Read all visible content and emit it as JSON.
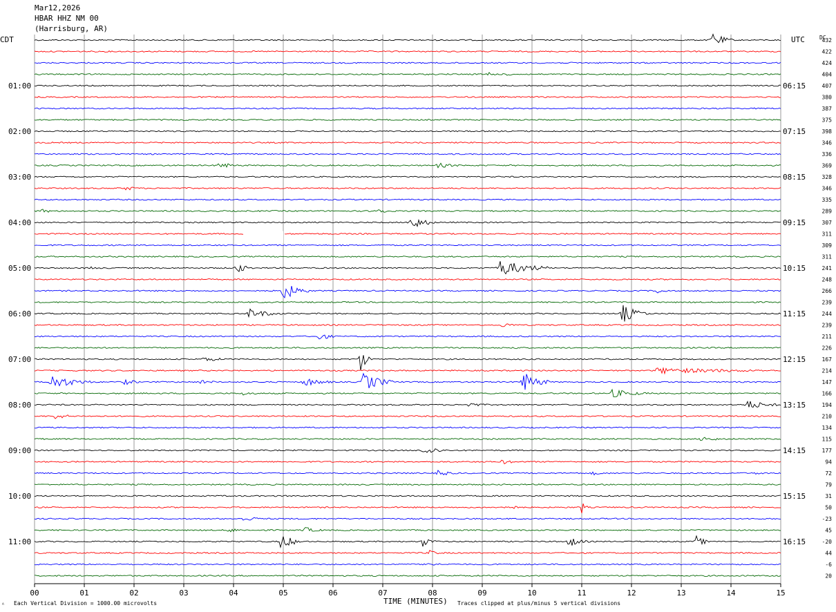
{
  "header": {
    "date": "Mar12,2026",
    "station": "HBAR HHZ NM 00",
    "location": "(Harrisburg, AR)"
  },
  "left_axis_label": "CDT",
  "right_axis_label": "UTC",
  "dc_label": "DC",
  "footer": {
    "scale_note": "Each Vertical Division = 1000.00 microvolts",
    "x_axis_title": "TIME (MINUTES)",
    "clip_note": "Traces clipped at plus/minus 5 vertical divisions",
    "corner_mark": "ᴬ"
  },
  "colors": {
    "black": "#000000",
    "red": "#ff0000",
    "blue": "#0000ff",
    "green": "#006600",
    "grid": "#808080"
  },
  "chart_data": {
    "type": "line",
    "title": "HBAR HHZ NM 00",
    "xlabel": "TIME (MINUTES)",
    "xlim": [
      0,
      15
    ],
    "x_ticks": [
      "00",
      "01",
      "02",
      "03",
      "04",
      "05",
      "06",
      "07",
      "08",
      "09",
      "10",
      "11",
      "12",
      "13",
      "14",
      "15"
    ],
    "row_minutes": 15,
    "color_cycle": [
      "black",
      "red",
      "blue",
      "green"
    ],
    "left_time_labels": [
      {
        "row": 4,
        "label": "01:00"
      },
      {
        "row": 8,
        "label": "02:00"
      },
      {
        "row": 12,
        "label": "03:00"
      },
      {
        "row": 16,
        "label": "04:00"
      },
      {
        "row": 20,
        "label": "05:00"
      },
      {
        "row": 24,
        "label": "06:00"
      },
      {
        "row": 28,
        "label": "07:00"
      },
      {
        "row": 32,
        "label": "08:00"
      },
      {
        "row": 36,
        "label": "09:00"
      },
      {
        "row": 40,
        "label": "10:00"
      },
      {
        "row": 44,
        "label": "11:00"
      }
    ],
    "right_time_labels": [
      {
        "row": 4,
        "label": "06:15"
      },
      {
        "row": 8,
        "label": "07:15"
      },
      {
        "row": 12,
        "label": "08:15"
      },
      {
        "row": 16,
        "label": "09:15"
      },
      {
        "row": 20,
        "label": "10:15"
      },
      {
        "row": 24,
        "label": "11:15"
      },
      {
        "row": 28,
        "label": "12:15"
      },
      {
        "row": 32,
        "label": "13:15"
      },
      {
        "row": 36,
        "label": "14:15"
      },
      {
        "row": 40,
        "label": "15:15"
      },
      {
        "row": 44,
        "label": "16:15"
      }
    ],
    "dc_offsets": [
      432,
      422,
      424,
      404,
      407,
      380,
      387,
      375,
      398,
      346,
      336,
      369,
      328,
      346,
      335,
      289,
      307,
      311,
      309,
      311,
      241,
      248,
      266,
      239,
      244,
      239,
      211,
      226,
      167,
      214,
      147,
      166,
      194,
      210,
      134,
      115,
      177,
      94,
      72,
      79,
      31,
      50,
      -23,
      45,
      -20,
      44,
      -6,
      20
    ],
    "data_gaps": [
      {
        "row": 17,
        "start_min": 4.2,
        "end_min": 5.0
      }
    ],
    "events": [
      {
        "row": 0,
        "min": 13.6,
        "amp": 1.6,
        "dur": 0.3
      },
      {
        "row": 3,
        "min": 9.1,
        "amp": 0.7,
        "dur": 0.1
      },
      {
        "row": 3,
        "min": 9.5,
        "amp": 0.5,
        "dur": 0.05
      },
      {
        "row": 11,
        "min": 3.7,
        "amp": 0.6,
        "dur": 0.4
      },
      {
        "row": 11,
        "min": 8.1,
        "amp": 0.5,
        "dur": 0.5
      },
      {
        "row": 13,
        "min": 1.8,
        "amp": 0.5,
        "dur": 0.3
      },
      {
        "row": 15,
        "min": 0.15,
        "amp": 0.5,
        "dur": 0.2
      },
      {
        "row": 15,
        "min": 6.85,
        "amp": 1.0,
        "dur": 0.2
      },
      {
        "row": 16,
        "min": 7.5,
        "amp": 1.6,
        "dur": 0.4
      },
      {
        "row": 20,
        "min": 1.15,
        "amp": 0.5,
        "dur": 0.1
      },
      {
        "row": 20,
        "min": 4.05,
        "amp": 1.2,
        "dur": 0.2
      },
      {
        "row": 20,
        "min": 9.3,
        "amp": 1.6,
        "dur": 0.9
      },
      {
        "row": 22,
        "min": 4.95,
        "amp": 2.0,
        "dur": 0.4
      },
      {
        "row": 22,
        "min": 12.5,
        "amp": 0.5,
        "dur": 0.3
      },
      {
        "row": 24,
        "min": 4.3,
        "amp": 0.9,
        "dur": 0.6
      },
      {
        "row": 24,
        "min": 11.8,
        "amp": 1.8,
        "dur": 0.4
      },
      {
        "row": 25,
        "min": 9.4,
        "amp": 0.5,
        "dur": 0.3
      },
      {
        "row": 26,
        "min": 5.7,
        "amp": 0.8,
        "dur": 0.3
      },
      {
        "row": 27,
        "min": 9.6,
        "amp": 0.5,
        "dur": 0.1
      },
      {
        "row": 28,
        "min": 3.4,
        "amp": 0.5,
        "dur": 0.5
      },
      {
        "row": 28,
        "min": 6.55,
        "amp": 2.5,
        "dur": 0.1
      },
      {
        "row": 29,
        "min": 12.5,
        "amp": 0.6,
        "dur": 2.5
      },
      {
        "row": 30,
        "min": 0.3,
        "amp": 1.4,
        "dur": 0.7
      },
      {
        "row": 30,
        "min": 1.8,
        "amp": 0.6,
        "dur": 0.3
      },
      {
        "row": 30,
        "min": 3.3,
        "amp": 0.5,
        "dur": 0.4
      },
      {
        "row": 30,
        "min": 5.4,
        "amp": 0.9,
        "dur": 0.5
      },
      {
        "row": 30,
        "min": 6.6,
        "amp": 1.8,
        "dur": 0.5
      },
      {
        "row": 30,
        "min": 9.8,
        "amp": 2.0,
        "dur": 0.4
      },
      {
        "row": 31,
        "min": 4.2,
        "amp": 0.6,
        "dur": 0.2
      },
      {
        "row": 31,
        "min": 11.6,
        "amp": 0.8,
        "dur": 0.7
      },
      {
        "row": 32,
        "min": 8.7,
        "amp": 0.5,
        "dur": 0.4
      },
      {
        "row": 32,
        "min": 14.3,
        "amp": 0.9,
        "dur": 0.6
      },
      {
        "row": 33,
        "min": 0.4,
        "amp": 0.6,
        "dur": 0.4
      },
      {
        "row": 35,
        "min": 13.4,
        "amp": 0.6,
        "dur": 0.4
      },
      {
        "row": 36,
        "min": 7.8,
        "amp": 1.0,
        "dur": 0.4
      },
      {
        "row": 37,
        "min": 9.4,
        "amp": 0.5,
        "dur": 0.3
      },
      {
        "row": 38,
        "min": 8.1,
        "amp": 0.7,
        "dur": 0.3
      },
      {
        "row": 38,
        "min": 11.2,
        "amp": 0.4,
        "dur": 0.3
      },
      {
        "row": 38,
        "min": 14.5,
        "amp": 0.4,
        "dur": 0.2
      },
      {
        "row": 41,
        "min": 9.4,
        "amp": 0.6,
        "dur": 0.4
      },
      {
        "row": 41,
        "min": 11.0,
        "amp": 1.2,
        "dur": 0.05
      },
      {
        "row": 42,
        "min": 4.2,
        "amp": 0.5,
        "dur": 0.5
      },
      {
        "row": 43,
        "min": 3.9,
        "amp": 0.5,
        "dur": 0.3
      },
      {
        "row": 43,
        "min": 5.4,
        "amp": 0.6,
        "dur": 0.4
      },
      {
        "row": 44,
        "min": 4.95,
        "amp": 1.6,
        "dur": 0.3
      },
      {
        "row": 44,
        "min": 7.8,
        "amp": 1.0,
        "dur": 0.2
      },
      {
        "row": 44,
        "min": 10.7,
        "amp": 1.2,
        "dur": 0.3
      },
      {
        "row": 44,
        "min": 13.3,
        "amp": 1.1,
        "dur": 0.2
      },
      {
        "row": 45,
        "min": 7.9,
        "amp": 0.6,
        "dur": 0.3
      },
      {
        "row": 46,
        "min": 7.9,
        "amp": 0.5,
        "dur": 0.3
      }
    ]
  }
}
